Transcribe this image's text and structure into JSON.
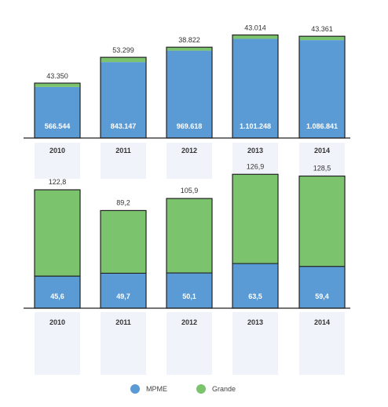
{
  "chart_data": [
    {
      "type": "bar",
      "stacked": true,
      "categories": [
        "2010",
        "2011",
        "2012",
        "2013",
        "2014"
      ],
      "series": [
        {
          "name": "MPME",
          "values": [
            566544,
            843147,
            969618,
            1101248,
            1086841
          ],
          "labels": [
            "566.544",
            "843.147",
            "969.618",
            "1.101.248",
            "1.086.841"
          ]
        },
        {
          "name": "Grande",
          "values": [
            43350,
            53299,
            38822,
            43014,
            43361
          ],
          "labels": [
            "43.350",
            "53.299",
            "38.822",
            "43.014",
            "43.361"
          ]
        }
      ]
    },
    {
      "type": "bar",
      "stacked": true,
      "categories": [
        "2010",
        "2011",
        "2012",
        "2013",
        "2014"
      ],
      "series": [
        {
          "name": "MPME",
          "values": [
            45.6,
            49.7,
            50.1,
            63.5,
            59.4
          ],
          "labels": [
            "45,6",
            "49,7",
            "50,1",
            "63,5",
            "59,4"
          ]
        },
        {
          "name": "Grande",
          "values": [
            122.8,
            89.2,
            105.9,
            126.9,
            128.5
          ],
          "labels": [
            "122,8",
            "89,2",
            "105,9",
            "126,9",
            "128,5"
          ]
        }
      ]
    }
  ],
  "legend": [
    {
      "name": "MPME",
      "color": "#5b9bd5"
    },
    {
      "name": "Grande",
      "color": "#7cc36e"
    }
  ],
  "colors": {
    "mpme": "#5b9bd5",
    "grande": "#7cc36e",
    "axis": "#222222",
    "band": "#eef3fa"
  }
}
